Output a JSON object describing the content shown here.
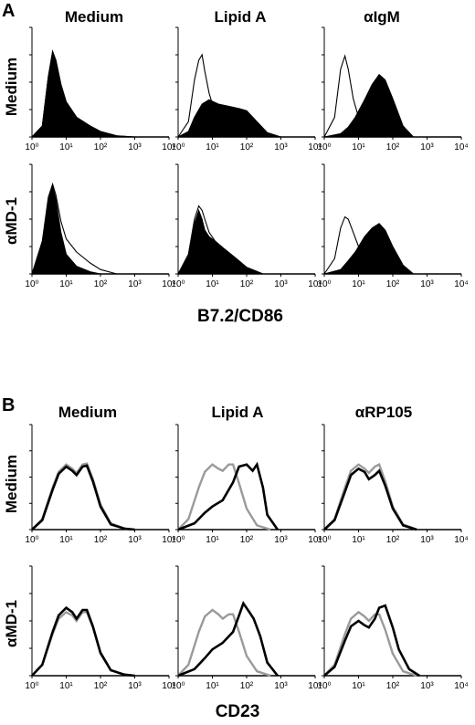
{
  "panels": [
    {
      "letter": "A",
      "column_labels": [
        "Medium",
        "Lipid A",
        "αIgM"
      ],
      "row_labels": [
        "Medium",
        "αMD-1"
      ],
      "xlabel": "B7.2/CD86",
      "tick_labels": [
        "10⁰",
        "10¹",
        "10²",
        "10³",
        "10⁴"
      ]
    },
    {
      "letter": "B",
      "column_labels": [
        "Medium",
        "Lipid A",
        "αRP105"
      ],
      "row_labels": [
        "Medium",
        "αMD-1"
      ],
      "xlabel": "CD23",
      "tick_labels": [
        "10⁰",
        "10¹",
        "10²",
        "10³",
        "10⁴"
      ]
    }
  ],
  "chart_data": [
    {
      "type": "area",
      "panel": "A",
      "xscale": "log",
      "xlim": [
        1,
        10000
      ],
      "ylim": [
        0,
        100
      ],
      "grid": false,
      "histograms": [
        {
          "row": "Medium",
          "column": "Medium",
          "series": [
            {
              "style": "outline",
              "x": [
                1,
                2,
                3,
                4,
                5,
                7,
                10,
                20,
                50,
                100,
                300,
                1000
              ],
              "y": [
                0,
                10,
                55,
                78,
                70,
                48,
                32,
                18,
                10,
                5,
                1,
                0
              ]
            },
            {
              "style": "filled",
              "x": [
                1,
                2,
                3,
                4,
                5,
                7,
                10,
                20,
                50,
                100,
                300,
                1000
              ],
              "y": [
                0,
                10,
                55,
                78,
                70,
                48,
                32,
                18,
                10,
                5,
                1,
                0
              ]
            }
          ]
        },
        {
          "row": "Medium",
          "column": "Lipid A",
          "series": [
            {
              "style": "outline",
              "x": [
                1,
                2,
                3,
                4,
                5,
                6,
                8,
                10,
                20,
                40,
                100,
                1000
              ],
              "y": [
                0,
                14,
                52,
                70,
                75,
                60,
                40,
                30,
                18,
                10,
                4,
                0
              ]
            },
            {
              "style": "filled",
              "x": [
                1,
                2,
                3,
                5,
                8,
                15,
                30,
                60,
                100,
                200,
                400,
                1000
              ],
              "y": [
                0,
                5,
                18,
                30,
                34,
                30,
                28,
                26,
                24,
                14,
                4,
                0
              ]
            }
          ]
        },
        {
          "row": "Medium",
          "column": "αIgM",
          "series": [
            {
              "style": "outline",
              "x": [
                1,
                2,
                3,
                4,
                5,
                7,
                10,
                20,
                40,
                100
              ],
              "y": [
                0,
                18,
                62,
                74,
                62,
                35,
                18,
                8,
                3,
                0
              ]
            },
            {
              "style": "filled",
              "x": [
                1,
                3,
                5,
                8,
                15,
                25,
                40,
                60,
                100,
                200,
                400
              ],
              "y": [
                0,
                3,
                9,
                18,
                34,
                48,
                57,
                52,
                35,
                10,
                0
              ]
            }
          ]
        },
        {
          "row": "αMD-1",
          "column": "Medium",
          "series": [
            {
              "style": "outline",
              "x": [
                1,
                2,
                3,
                4,
                5,
                7,
                10,
                20,
                50,
                100,
                300
              ],
              "y": [
                0,
                30,
                70,
                82,
                72,
                48,
                32,
                20,
                10,
                4,
                0
              ]
            },
            {
              "style": "filled",
              "x": [
                1,
                2,
                3,
                4,
                5,
                7,
                10,
                20,
                50,
                100,
                300
              ],
              "y": [
                0,
                28,
                68,
                80,
                68,
                38,
                18,
                7,
                2,
                0,
                0
              ]
            }
          ]
        },
        {
          "row": "αMD-1",
          "column": "Lipid A",
          "series": [
            {
              "style": "outline",
              "x": [
                1,
                2,
                3,
                4,
                5,
                6,
                8,
                12,
                20,
                50,
                100,
                300
              ],
              "y": [
                0,
                18,
                50,
                62,
                58,
                50,
                38,
                30,
                24,
                14,
                6,
                0
              ]
            },
            {
              "style": "filled",
              "x": [
                1,
                2,
                3,
                4,
                5,
                6,
                8,
                12,
                20,
                50,
                100,
                300
              ],
              "y": [
                0,
                16,
                46,
                58,
                50,
                40,
                34,
                30,
                24,
                14,
                6,
                0
              ]
            }
          ]
        },
        {
          "row": "αMD-1",
          "column": "αIgM",
          "series": [
            {
              "style": "outline",
              "x": [
                1,
                2,
                3,
                4,
                5,
                7,
                10,
                20,
                40,
                100
              ],
              "y": [
                0,
                14,
                42,
                52,
                50,
                38,
                25,
                12,
                4,
                0
              ]
            },
            {
              "style": "filled",
              "x": [
                1,
                3,
                5,
                8,
                15,
                25,
                40,
                60,
                100,
                200,
                400
              ],
              "y": [
                0,
                4,
                12,
                20,
                34,
                42,
                46,
                40,
                25,
                8,
                0
              ]
            }
          ]
        }
      ]
    },
    {
      "type": "line",
      "panel": "B",
      "xscale": "log",
      "xlim": [
        1,
        10000
      ],
      "ylim": [
        0,
        100
      ],
      "grid": false,
      "histograms": [
        {
          "row": "Medium",
          "column": "Medium",
          "series": [
            {
              "style": "gray",
              "x": [
                1,
                2,
                4,
                6,
                10,
                15,
                20,
                30,
                40,
                60,
                100,
                200,
                500,
                1000
              ],
              "y": [
                0,
                10,
                40,
                55,
                62,
                58,
                54,
                62,
                63,
                48,
                24,
                6,
                1,
                0
              ]
            },
            {
              "style": "black",
              "x": [
                1,
                2,
                4,
                6,
                10,
                15,
                20,
                30,
                40,
                60,
                100,
                200,
                500,
                1000
              ],
              "y": [
                0,
                9,
                38,
                53,
                60,
                56,
                52,
                60,
                61,
                46,
                22,
                5,
                1,
                0
              ]
            }
          ]
        },
        {
          "row": "Medium",
          "column": "Lipid A",
          "series": [
            {
              "style": "gray",
              "x": [
                1,
                2,
                4,
                6,
                10,
                15,
                20,
                30,
                40,
                60,
                100,
                200,
                500
              ],
              "y": [
                0,
                10,
                40,
                55,
                62,
                58,
                56,
                62,
                62,
                44,
                20,
                4,
                0
              ]
            },
            {
              "style": "black",
              "x": [
                1,
                3,
                6,
                10,
                20,
                40,
                60,
                100,
                150,
                200,
                300,
                400,
                800
              ],
              "y": [
                0,
                6,
                16,
                22,
                28,
                45,
                60,
                62,
                56,
                62,
                40,
                14,
                0
              ]
            }
          ]
        },
        {
          "row": "Medium",
          "column": "αRP105",
          "series": [
            {
              "style": "gray",
              "x": [
                1,
                2,
                4,
                6,
                10,
                15,
                20,
                30,
                40,
                60,
                100,
                200,
                500
              ],
              "y": [
                0,
                10,
                40,
                56,
                62,
                58,
                54,
                60,
                62,
                46,
                22,
                5,
                0
              ]
            },
            {
              "style": "black",
              "x": [
                1,
                2,
                4,
                6,
                10,
                15,
                20,
                30,
                40,
                60,
                100,
                200,
                500
              ],
              "y": [
                0,
                9,
                36,
                52,
                58,
                55,
                48,
                52,
                56,
                42,
                20,
                4,
                0
              ]
            }
          ]
        },
        {
          "row": "αMD-1",
          "column": "Medium",
          "series": [
            {
              "style": "gray",
              "x": [
                1,
                2,
                4,
                6,
                10,
                15,
                20,
                30,
                40,
                60,
                100,
                200,
                500,
                1000
              ],
              "y": [
                0,
                10,
                38,
                52,
                58,
                55,
                50,
                58,
                58,
                44,
                20,
                5,
                1,
                0
              ]
            },
            {
              "style": "black",
              "x": [
                1,
                2,
                4,
                6,
                10,
                15,
                20,
                30,
                40,
                60,
                100,
                200,
                500,
                1000
              ],
              "y": [
                0,
                10,
                40,
                55,
                62,
                58,
                52,
                60,
                60,
                45,
                21,
                5,
                1,
                0
              ]
            }
          ]
        },
        {
          "row": "αMD-1",
          "column": "Lipid A",
          "series": [
            {
              "style": "gray",
              "x": [
                1,
                2,
                4,
                6,
                10,
                15,
                20,
                30,
                40,
                60,
                100,
                200,
                500
              ],
              "y": [
                0,
                10,
                40,
                54,
                60,
                56,
                52,
                56,
                56,
                40,
                18,
                4,
                0
              ]
            },
            {
              "style": "black",
              "x": [
                1,
                3,
                6,
                10,
                20,
                40,
                60,
                80,
                120,
                160,
                250,
                400,
                800
              ],
              "y": [
                0,
                6,
                16,
                24,
                30,
                40,
                55,
                66,
                58,
                52,
                36,
                12,
                0
              ]
            }
          ]
        },
        {
          "row": "αMD-1",
          "column": "αRP105",
          "series": [
            {
              "style": "gray",
              "x": [
                1,
                2,
                4,
                6,
                10,
                15,
                20,
                30,
                40,
                60,
                100,
                200,
                500
              ],
              "y": [
                0,
                10,
                38,
                52,
                58,
                54,
                50,
                56,
                56,
                42,
                20,
                4,
                0
              ]
            },
            {
              "style": "black",
              "x": [
                1,
                2,
                4,
                6,
                10,
                15,
                20,
                30,
                40,
                60,
                100,
                150,
                300,
                600
              ],
              "y": [
                0,
                8,
                32,
                45,
                50,
                46,
                44,
                52,
                62,
                64,
                44,
                24,
                6,
                0
              ]
            }
          ]
        }
      ]
    }
  ]
}
